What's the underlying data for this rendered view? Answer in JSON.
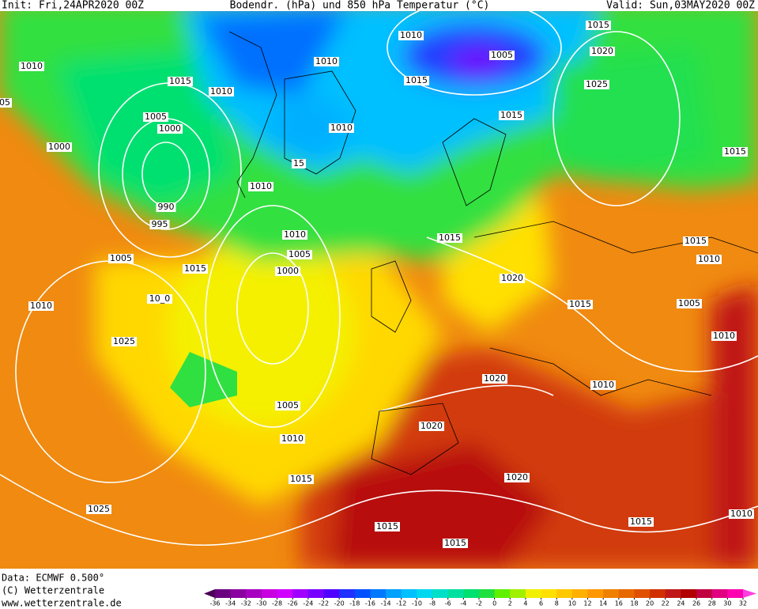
{
  "header": {
    "init": "Init: Fri,24APR2020 00Z",
    "title": "Bodendr. (hPa) und 850 hPa Temperatur (°C)",
    "valid": "Valid: Sun,03MAY2020 00Z"
  },
  "isobar_labels": [
    "1010",
    "1005",
    "1015",
    "1020",
    "1010",
    "1010",
    "1015",
    "1010",
    "1015",
    "1025",
    "1005",
    "1000",
    "1015",
    "1010",
    "1000",
    "1015",
    "15",
    "1010",
    "990",
    "995",
    "1010",
    "1015",
    "1005",
    "1005",
    "1015",
    "1000",
    "1020",
    "1015",
    "1010",
    "1010",
    "1015",
    "1005",
    "1025",
    "1010",
    "1020",
    "1010",
    "1005",
    "1020",
    "1010",
    "1015",
    "1020",
    "1025",
    "1010",
    "1015",
    "1015",
    "1015",
    "05",
    "10_0"
  ],
  "footer": {
    "data": "Data: ECMWF   0.500°",
    "copyright": "(C) Wetterzentrale",
    "url": "www.wetterzentrale.de"
  },
  "colorbar": {
    "labels": [
      -36,
      -34,
      -32,
      -30,
      -28,
      -26,
      -24,
      -22,
      -20,
      -18,
      -16,
      -14,
      -12,
      -10,
      -8,
      -6,
      -4,
      -2,
      0,
      2,
      4,
      6,
      8,
      10,
      12,
      14,
      16,
      18,
      20,
      22,
      24,
      26,
      28,
      30,
      32
    ],
    "colors": [
      "#4b0055",
      "#6a0080",
      "#8a00a0",
      "#a800c0",
      "#c800e0",
      "#d000ff",
      "#a000ff",
      "#7800ff",
      "#5000ff",
      "#2030ff",
      "#0050ff",
      "#0078ff",
      "#00a0ff",
      "#00c0ff",
      "#00d8f0",
      "#00e0c8",
      "#00e0a0",
      "#00e070",
      "#20e040",
      "#60f000",
      "#a0f000",
      "#f0f000",
      "#ffe000",
      "#ffc800",
      "#ffb000",
      "#ff9800",
      "#f08000",
      "#e86800",
      "#e05000",
      "#d03000",
      "#c01818",
      "#b00000",
      "#c00040",
      "#e00080",
      "#ff00b0",
      "#ff40e0"
    ]
  }
}
